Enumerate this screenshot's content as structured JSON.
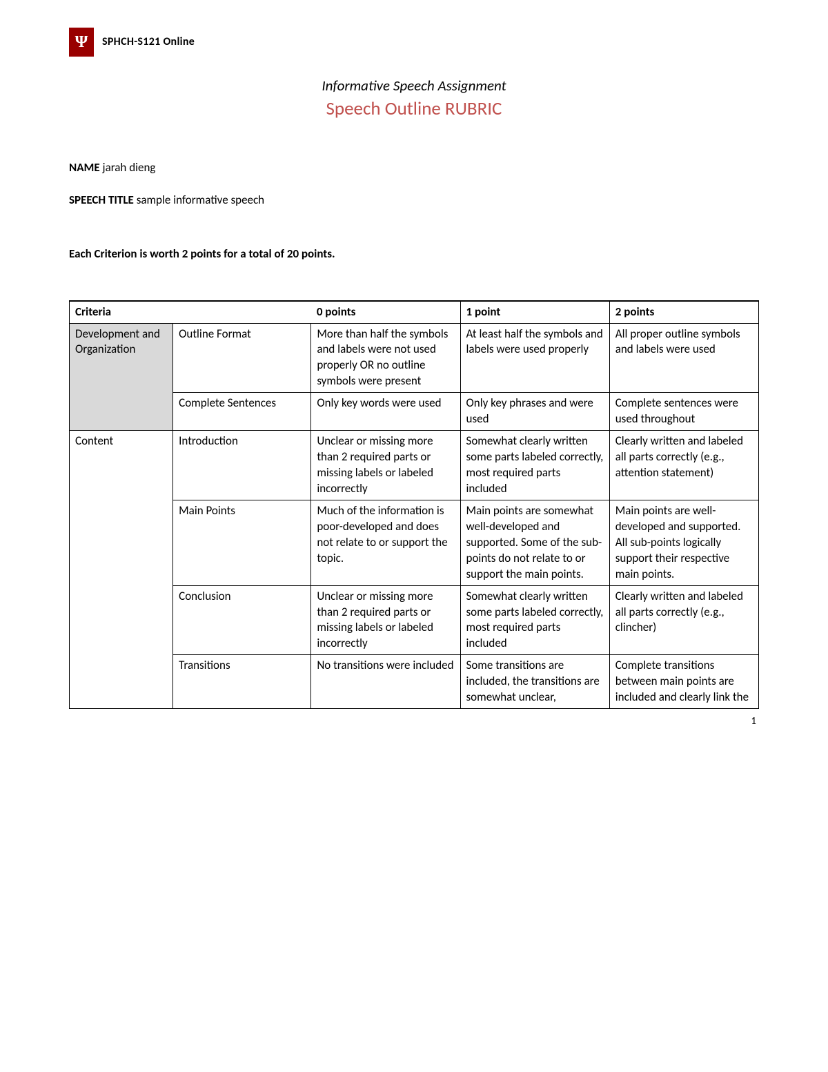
{
  "header": {
    "logo_letter": "Ψ",
    "course_code": "SPHCH-S121 Online"
  },
  "title": "Informative Speech Assignment",
  "subtitle": "Speech Outline RUBRIC",
  "name_label": "NAME",
  "name_value": "jarah dieng",
  "speech_title_label": "SPEECH TITLE",
  "speech_title_value": "sample informative speech",
  "points_line_prefix": "Each Criterion is worth 2 points for a total of ",
  "points_total": "20",
  "points_line_suffix": " points.",
  "table": {
    "headers": {
      "criteria": "Criteria",
      "points0": "0 points",
      "points1": "1 point",
      "points2": "2 points"
    },
    "groups": [
      {
        "category": "Development and Organization",
        "rows": [
          {
            "criterion": "Outline Format",
            "p0": "More than half the symbols and labels were not used properly OR no outline symbols were present",
            "p1": "At least half the symbols and labels were used properly",
            "p2": "All proper outline symbols and labels were used"
          },
          {
            "criterion": "Complete Sentences",
            "p0": "Only key words were used",
            "p1": "Only key phrases and were used",
            "p2": "Complete sentences were used throughout"
          }
        ]
      },
      {
        "category": "Content",
        "rows": [
          {
            "criterion": "Introduction",
            "p0": "Unclear or missing more than 2 required parts or missing labels or labeled incorrectly",
            "p1": "Somewhat clearly written some parts labeled correctly, most required parts included",
            "p2": "Clearly written and labeled all parts correctly (e.g., attention statement)"
          },
          {
            "criterion": "Main Points",
            "p0": "Much of the information is poor-developed and does not relate to or support the topic.",
            "p1": "Main points are somewhat well-developed and supported. Some of the sub-points do not relate to or support the main points.",
            "p2": "Main points are well-developed and supported. All sub-points logically support their respective main points."
          },
          {
            "criterion": "Conclusion",
            "p0": "Unclear or missing more than 2 required parts or missing labels or labeled incorrectly",
            "p1": "Somewhat clearly written some parts labeled correctly, most required parts included",
            "p2": "Clearly written and labeled all parts correctly (e.g., clincher)"
          },
          {
            "criterion": "Transitions",
            "p0": "No transitions were included",
            "p1": "Some transitions are included, the transitions are somewhat unclear,",
            "p2": "Complete transitions between main points are included and clearly link the"
          }
        ]
      }
    ]
  },
  "page_number": "1"
}
